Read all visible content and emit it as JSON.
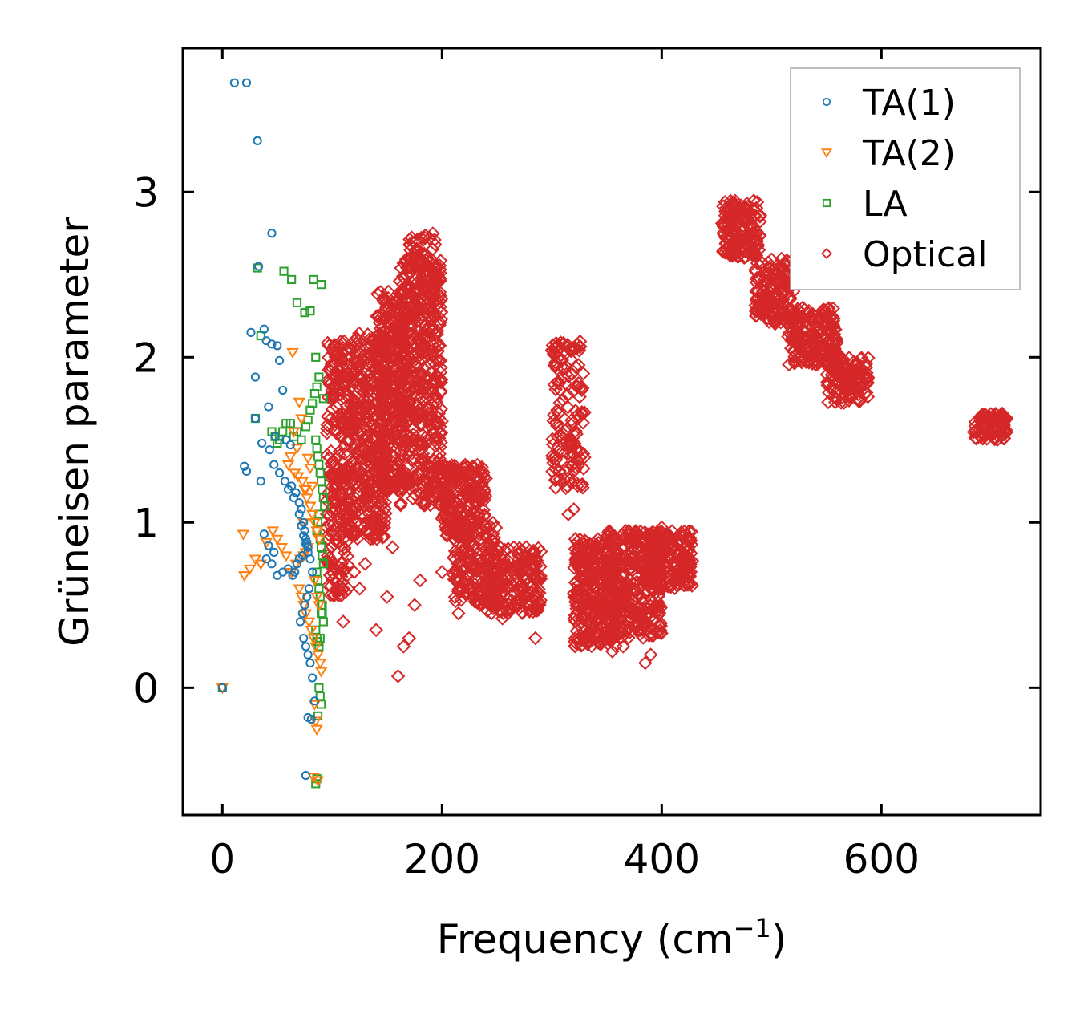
{
  "chart_data": {
    "type": "scatter",
    "title": "",
    "xlabel": "Frequency (cm",
    "xlabel_sup": "−1",
    "xlabel_suffix": ")",
    "ylabel": "Grüneisen parameter",
    "xlim": [
      -36,
      745
    ],
    "ylim": [
      -0.77,
      3.87
    ],
    "xticks": [
      0,
      200,
      400,
      600
    ],
    "yticks": [
      0,
      1,
      2,
      3
    ],
    "xtick_labels": [
      "0",
      "200",
      "400",
      "600"
    ],
    "ytick_labels": [
      "0",
      "1",
      "2",
      "3"
    ],
    "grid": false,
    "legend_position": "top-right",
    "series": [
      {
        "name": "TA(1)",
        "marker": "circle",
        "color": "#1f77b4",
        "x": [
          0,
          11,
          22,
          32,
          45,
          33,
          26,
          30,
          40,
          38,
          45,
          50,
          52,
          55,
          42,
          48,
          58,
          62,
          30,
          36,
          43,
          47,
          52,
          57,
          63,
          67,
          70,
          72,
          74,
          75,
          76,
          77,
          78,
          73,
          70,
          68,
          66,
          64,
          60,
          55,
          50,
          45,
          40,
          38,
          42,
          47,
          20,
          22,
          35,
          60,
          65,
          70,
          72,
          74,
          76,
          78,
          80,
          82,
          79,
          77,
          75,
          73,
          71,
          74,
          76,
          78,
          80,
          82,
          84,
          78,
          76,
          81
        ],
        "y": [
          0,
          3.66,
          3.66,
          3.31,
          2.75,
          2.55,
          2.15,
          1.88,
          2.1,
          2.17,
          2.08,
          2.07,
          1.98,
          1.8,
          1.7,
          1.52,
          1.5,
          1.47,
          1.63,
          1.48,
          1.44,
          1.35,
          1.3,
          1.25,
          1.22,
          1.18,
          1.12,
          1.08,
          1.0,
          0.95,
          0.9,
          0.88,
          0.85,
          0.8,
          0.78,
          0.75,
          0.7,
          0.68,
          0.72,
          0.7,
          0.68,
          0.75,
          0.78,
          0.93,
          0.86,
          0.82,
          1.34,
          1.31,
          1.25,
          1.2,
          1.15,
          1.05,
          0.98,
          0.92,
          0.87,
          0.82,
          0.78,
          0.7,
          0.6,
          0.55,
          0.5,
          0.45,
          0.4,
          0.3,
          0.25,
          0.2,
          0.15,
          0.06,
          -0.08,
          -0.18,
          -0.53,
          -0.19
        ]
      },
      {
        "name": "TA(2)",
        "marker": "triangle-down",
        "color": "#ff7f0e",
        "x": [
          0,
          64,
          70,
          72,
          65,
          68,
          62,
          60,
          66,
          69,
          73,
          75,
          77,
          80,
          82,
          84,
          86,
          88,
          78,
          76,
          74,
          71,
          67,
          63,
          58,
          54,
          50,
          46,
          40,
          35,
          30,
          25,
          20,
          19,
          70,
          72,
          74,
          76,
          79,
          81,
          83,
          85,
          87,
          89,
          90,
          84,
          86,
          85,
          83,
          87,
          88,
          86,
          84,
          82,
          80,
          78,
          76,
          74
        ],
        "y": [
          0,
          2.03,
          1.73,
          1.63,
          1.55,
          1.45,
          1.4,
          1.35,
          1.3,
          1.28,
          1.25,
          1.2,
          1.15,
          1.1,
          1.05,
          1.0,
          0.95,
          0.9,
          0.85,
          0.82,
          0.8,
          0.78,
          0.75,
          0.7,
          0.8,
          0.85,
          0.9,
          0.95,
          0.88,
          0.75,
          0.78,
          0.72,
          0.68,
          0.93,
          0.6,
          0.55,
          0.5,
          0.45,
          0.4,
          0.35,
          0.3,
          0.25,
          0.2,
          0.15,
          0.1,
          -0.1,
          -0.25,
          -0.2,
          -0.54,
          -0.56,
          0.5,
          0.55,
          0.65,
          1.22,
          1.33,
          1.39,
          1.2,
          1.0
        ]
      },
      {
        "name": "LA",
        "marker": "square",
        "color": "#2ca02c",
        "x": [
          0,
          56,
          63,
          68,
          75,
          80,
          83,
          85,
          90,
          92,
          88,
          86,
          84,
          82,
          80,
          78,
          76,
          72,
          68,
          65,
          62,
          58,
          55,
          52,
          50,
          48,
          45,
          30,
          32,
          35,
          85,
          86,
          87,
          88,
          89,
          90,
          91,
          92,
          93,
          88,
          87,
          86,
          89,
          90,
          91,
          92,
          86,
          87,
          88,
          89,
          90,
          91,
          92,
          85,
          86,
          87,
          88,
          89,
          90,
          91,
          88,
          89,
          90,
          87,
          86,
          85
        ],
        "y": [
          0,
          2.52,
          2.47,
          2.33,
          2.27,
          2.28,
          2.47,
          2.0,
          2.44,
          1.75,
          1.88,
          1.82,
          1.78,
          1.72,
          1.68,
          1.62,
          1.58,
          1.5,
          1.55,
          1.52,
          1.6,
          1.6,
          1.55,
          1.5,
          1.48,
          1.52,
          1.55,
          1.63,
          2.54,
          2.13,
          1.5,
          1.45,
          1.4,
          1.35,
          1.3,
          1.25,
          1.2,
          1.15,
          1.1,
          1.05,
          1.0,
          0.95,
          0.9,
          0.85,
          0.8,
          0.75,
          0.7,
          0.65,
          0.6,
          0.55,
          0.5,
          0.45,
          0.4,
          0.35,
          0.3,
          0.28,
          0.25,
          0.3,
          0.45,
          0.5,
          0.0,
          -0.05,
          -0.1,
          -0.17,
          -0.55,
          -0.58
        ]
      },
      {
        "name": "Optical",
        "marker": "diamond",
        "color": "#d62728",
        "clusters": [
          {
            "x": [
              95,
              115
            ],
            "y": [
              0.55,
              2.1
            ],
            "n": 260
          },
          {
            "x": [
              115,
              150
            ],
            "y": [
              0.9,
              2.15
            ],
            "n": 420
          },
          {
            "x": [
              140,
              165
            ],
            "y": [
              1.2,
              2.4
            ],
            "n": 280
          },
          {
            "x": [
              160,
              200
            ],
            "y": [
              1.1,
              2.6
            ],
            "n": 520
          },
          {
            "x": [
              170,
              195
            ],
            "y": [
              2.3,
              2.75
            ],
            "n": 60
          },
          {
            "x": [
              200,
              240
            ],
            "y": [
              0.9,
              1.35
            ],
            "n": 220
          },
          {
            "x": [
              210,
              250
            ],
            "y": [
              0.5,
              1.0
            ],
            "n": 160
          },
          {
            "x": [
              240,
              290
            ],
            "y": [
              0.45,
              0.85
            ],
            "n": 220
          },
          {
            "x": [
              320,
              360
            ],
            "y": [
              0.25,
              0.9
            ],
            "n": 320
          },
          {
            "x": [
              350,
              400
            ],
            "y": [
              0.3,
              0.95
            ],
            "n": 320
          },
          {
            "x": [
              385,
              428
            ],
            "y": [
              0.6,
              0.95
            ],
            "n": 200
          },
          {
            "x": [
              300,
              330
            ],
            "y": [
              1.2,
              2.1
            ],
            "n": 150
          },
          {
            "x": [
              455,
              490
            ],
            "y": [
              2.6,
              2.95
            ],
            "n": 170
          },
          {
            "x": [
              485,
              520
            ],
            "y": [
              2.2,
              2.6
            ],
            "n": 170
          },
          {
            "x": [
              515,
              560
            ],
            "y": [
              1.95,
              2.3
            ],
            "n": 190
          },
          {
            "x": [
              550,
              588
            ],
            "y": [
              1.72,
              2.0
            ],
            "n": 150
          },
          {
            "x": [
              684,
              714
            ],
            "y": [
              1.5,
              1.66
            ],
            "n": 90
          }
        ],
        "outliers_x": [
          110,
          140,
          160,
          165,
          170,
          120,
          130,
          125,
          175,
          150,
          215,
          230,
          255,
          285,
          315,
          320,
          330,
          345,
          355,
          365,
          385,
          390,
          400,
          410,
          260,
          270,
          240,
          200,
          180,
          155,
          135
        ],
        "outliers_y": [
          0.4,
          0.35,
          0.07,
          0.25,
          0.3,
          0.7,
          0.75,
          0.6,
          0.5,
          0.55,
          0.45,
          0.52,
          0.42,
          0.3,
          1.05,
          1.08,
          0.85,
          0.3,
          0.22,
          0.25,
          0.15,
          0.2,
          0.97,
          0.9,
          0.45,
          0.5,
          0.55,
          0.7,
          0.65,
          0.85,
          0.9
        ]
      }
    ]
  }
}
